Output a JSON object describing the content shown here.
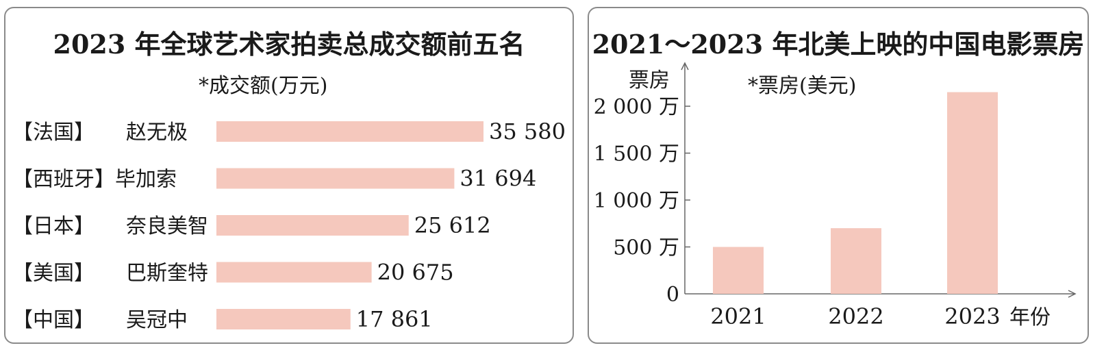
{
  "charts": {
    "left": {
      "title": "2023 年全球艺术家拍卖总成交额前五名",
      "subtitle": "*成交额(万元)"
    },
    "right": {
      "title": "2021～2023 年北美上映的中国电影票房",
      "subtitle": "*票房(美元)",
      "ylabel": "票房",
      "xlabel": "年份"
    }
  },
  "chart_data": [
    {
      "type": "bar",
      "orientation": "horizontal",
      "title": "2023 年全球艺术家拍卖总成交额前五名",
      "subtitle": "*成交额(万元)",
      "categories": [
        "【法国】 赵无极",
        "【西班牙】毕加索",
        "【日本】奈良美智",
        "【美国】巴斯奎特",
        "【中国】 吴冠中"
      ],
      "countries": [
        "【法国】",
        "【西班牙】",
        "【日本】",
        "【美国】",
        "【中国】"
      ],
      "artists": [
        "赵无极",
        "毕加索",
        "奈良美智",
        "巴斯奎特",
        "吴冠中"
      ],
      "values": [
        35580,
        31694,
        25612,
        20675,
        17861
      ],
      "value_labels": [
        "35 580",
        "31 694",
        "25 612",
        "20 675",
        "17 861"
      ],
      "bar_color": "#f5c8bd"
    },
    {
      "type": "bar",
      "title": "2021～2023 年北美上映的中国电影票房",
      "subtitle": "*票房(美元)",
      "ylabel": "票房",
      "xlabel": "年份",
      "categories": [
        "2021",
        "2022",
        "2023"
      ],
      "values": [
        5000000,
        7000000,
        21500000
      ],
      "ylim": [
        0,
        23000000
      ],
      "yticks": [
        0,
        5000000,
        10000000,
        15000000,
        20000000
      ],
      "ytick_labels": [
        "0",
        "500 万",
        "1 000 万",
        "1 500 万",
        "2 000 万"
      ],
      "bar_color": "#f5c8bd"
    }
  ]
}
